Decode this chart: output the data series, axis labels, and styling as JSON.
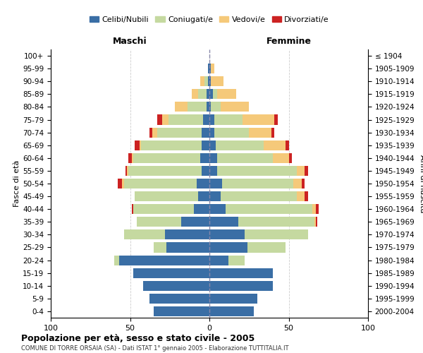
{
  "age_groups": [
    "0-4",
    "5-9",
    "10-14",
    "15-19",
    "20-24",
    "25-29",
    "30-34",
    "35-39",
    "40-44",
    "45-49",
    "50-54",
    "55-59",
    "60-64",
    "65-69",
    "70-74",
    "75-79",
    "80-84",
    "85-89",
    "90-94",
    "95-99",
    "100+"
  ],
  "birth_years": [
    "2000-2004",
    "1995-1999",
    "1990-1994",
    "1985-1989",
    "1980-1984",
    "1975-1979",
    "1970-1974",
    "1965-1969",
    "1960-1964",
    "1955-1959",
    "1950-1954",
    "1945-1949",
    "1940-1944",
    "1935-1939",
    "1930-1934",
    "1925-1929",
    "1920-1924",
    "1915-1919",
    "1910-1914",
    "1905-1909",
    "≤ 1904"
  ],
  "maschi": {
    "celibi": [
      35,
      38,
      42,
      48,
      57,
      27,
      28,
      18,
      10,
      7,
      8,
      5,
      6,
      5,
      5,
      4,
      2,
      2,
      1,
      1,
      0
    ],
    "coniugati": [
      0,
      0,
      0,
      0,
      3,
      8,
      26,
      28,
      38,
      40,
      46,
      46,
      42,
      38,
      28,
      22,
      12,
      5,
      2,
      0,
      0
    ],
    "vedovi": [
      0,
      0,
      0,
      0,
      0,
      0,
      0,
      0,
      0,
      0,
      1,
      1,
      1,
      1,
      3,
      4,
      8,
      4,
      3,
      0,
      0
    ],
    "divorziati": [
      0,
      0,
      0,
      0,
      0,
      0,
      0,
      0,
      1,
      0,
      3,
      1,
      2,
      3,
      2,
      3,
      0,
      0,
      0,
      0,
      0
    ]
  },
  "femmine": {
    "nubili": [
      28,
      30,
      40,
      40,
      12,
      24,
      22,
      18,
      10,
      7,
      8,
      5,
      5,
      4,
      3,
      3,
      1,
      2,
      1,
      1,
      0
    ],
    "coniugate": [
      0,
      0,
      0,
      0,
      10,
      24,
      40,
      48,
      55,
      48,
      45,
      50,
      35,
      30,
      22,
      18,
      6,
      3,
      0,
      0,
      0
    ],
    "vedove": [
      0,
      0,
      0,
      0,
      0,
      0,
      0,
      1,
      2,
      5,
      5,
      5,
      10,
      14,
      14,
      20,
      18,
      12,
      8,
      2,
      0
    ],
    "divorziate": [
      0,
      0,
      0,
      0,
      0,
      0,
      0,
      1,
      2,
      2,
      2,
      2,
      2,
      2,
      2,
      2,
      0,
      0,
      0,
      0,
      0
    ]
  },
  "colors": {
    "celibi_nubili": "#3a6ea5",
    "coniugati": "#c5d9a0",
    "vedovi": "#f5c97a",
    "divorziati": "#cc2222"
  },
  "title": "Popolazione per età, sesso e stato civile - 2005",
  "subtitle": "COMUNE DI TORRE ORSAIA (SA) - Dati ISTAT 1° gennaio 2005 - Elaborazione TUTTITALIA.IT",
  "xlabel_left": "Maschi",
  "xlabel_right": "Femmine",
  "ylabel_left": "Fasce di età",
  "ylabel_right": "Anni di nascita",
  "xlim": 100,
  "legend_labels": [
    "Celibi/Nubili",
    "Coniugati/e",
    "Vedovi/e",
    "Divorziati/e"
  ],
  "background_color": "#ffffff",
  "grid_color": "#cccccc",
  "bar_height": 0.78
}
